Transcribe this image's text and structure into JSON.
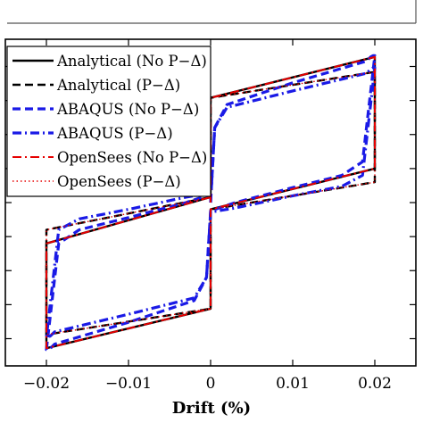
{
  "chart_data": {
    "type": "line",
    "title": "",
    "xlabel": "Drift (%)",
    "ylabel": "",
    "xlim": [
      -0.025,
      0.025
    ],
    "xticks": [
      -0.02,
      -0.01,
      0,
      0.01,
      0.02
    ],
    "xtick_labels": [
      "−0.02",
      "−0.01",
      "0",
      "0.01",
      "0.02"
    ],
    "ylim": [
      -1.2,
      1.2
    ],
    "ytick_values": [
      -1.0,
      -0.75,
      -0.5,
      -0.25,
      0,
      0.25,
      0.5,
      0.75,
      1.0
    ],
    "ytick_labels_visible": false,
    "grid": false,
    "legend_position": "top-left",
    "series": [
      {
        "name": "Analytical (No P−Δ)",
        "color": "#000000",
        "dash": "solid",
        "x": [
          0,
          0,
          0.02,
          0.02,
          0,
          0,
          -0.02,
          -0.02,
          0
        ],
        "y": [
          0,
          0.77,
          1.07,
          0.25,
          -0.05,
          -0.78,
          -1.07,
          -0.3,
          0.04
        ]
      },
      {
        "name": "Analytical (P−Δ)",
        "color": "#000000",
        "dash": "dashed",
        "x": [
          0,
          0,
          0.02,
          0.02,
          0,
          0,
          -0.02,
          -0.02,
          0
        ],
        "y": [
          0,
          0.77,
          0.96,
          0.15,
          -0.05,
          -0.78,
          -0.97,
          -0.2,
          0.04
        ]
      },
      {
        "name": "ABAQUS (No P−Δ)",
        "color": "#1a1ae6",
        "dash": "dashed",
        "x": [
          0,
          0.0005,
          0.002,
          0.01,
          0.019,
          0.0195,
          0.0198,
          0.02,
          0.0185,
          0.016,
          0.01,
          0.003,
          0,
          -0.0005,
          -0.002,
          -0.01,
          -0.019,
          -0.0195,
          -0.0198,
          -0.02,
          -0.0185,
          -0.016,
          -0.01,
          -0.003,
          0
        ],
        "y": [
          0,
          0.55,
          0.72,
          0.88,
          1.04,
          1.07,
          1.08,
          1.08,
          0.3,
          0.2,
          0.11,
          0.0,
          -0.06,
          -0.55,
          -0.72,
          -0.88,
          -1.04,
          -1.07,
          -1.08,
          -1.08,
          -0.3,
          -0.2,
          -0.11,
          0.0,
          0.06
        ]
      },
      {
        "name": "ABAQUS (P−Δ)",
        "color": "#1a1ae6",
        "dash": "dashdot",
        "x": [
          0,
          0.0005,
          0.002,
          0.01,
          0.019,
          0.0195,
          0.0198,
          0.02,
          0.0185,
          0.016,
          0.01,
          0.003,
          0,
          -0.0005,
          -0.002,
          -0.01,
          -0.019,
          -0.0195,
          -0.0198,
          -0.02,
          -0.0185,
          -0.016,
          -0.01,
          -0.003,
          0
        ],
        "y": [
          0,
          0.55,
          0.7,
          0.82,
          0.95,
          0.98,
          0.99,
          0.99,
          0.2,
          0.12,
          0.05,
          -0.04,
          -0.07,
          -0.55,
          -0.7,
          -0.82,
          -0.95,
          -0.98,
          -0.99,
          -0.99,
          -0.2,
          -0.12,
          -0.05,
          0.04,
          0.07
        ]
      },
      {
        "name": "OpenSees (No P−Δ)",
        "color": "#e60000",
        "dash": "dashdot",
        "x": [
          0,
          0,
          0.02,
          0.02,
          0,
          0,
          -0.02,
          -0.02,
          0
        ],
        "y": [
          0,
          0.77,
          1.07,
          0.25,
          -0.05,
          -0.78,
          -1.07,
          -0.3,
          0.04
        ]
      },
      {
        "name": "OpenSees (P−Δ)",
        "color": "#e60000",
        "dash": "dotted",
        "x": [
          0,
          0,
          0.02,
          0.02,
          0,
          0,
          -0.02,
          -0.02,
          0
        ],
        "y": [
          0,
          0.77,
          0.96,
          0.15,
          -0.05,
          -0.78,
          -0.97,
          -0.2,
          0.04
        ]
      }
    ]
  }
}
